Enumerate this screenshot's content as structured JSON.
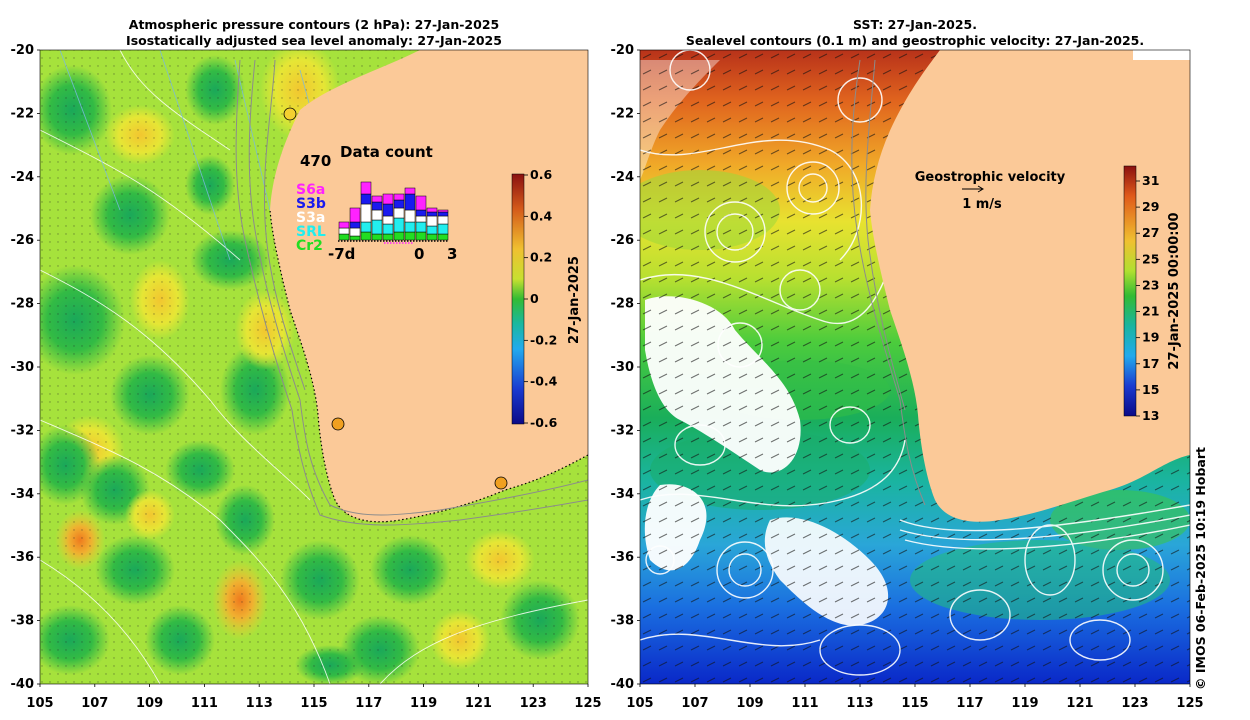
{
  "left_panel": {
    "title_line1": "Atmospheric pressure contours (2 hPa): 27-Jan-2025",
    "title_line2": "Isostatically adjusted sea level anomaly: 27-Jan-2025",
    "colorbar_label": "27-Jan-2025",
    "colorbar_ticks": [
      "0.6",
      "0.4",
      "0.2",
      "0",
      "-0.2",
      "-0.4",
      "-0.6"
    ],
    "inset": {
      "title": "Data count",
      "max_count": "470",
      "x_labels": [
        "-7d",
        "0",
        "3"
      ],
      "legend": [
        {
          "label": "S6a",
          "color": "#ff22ff"
        },
        {
          "label": "S3b",
          "color": "#1a1aee"
        },
        {
          "label": "S3a",
          "color": "#ffffff"
        },
        {
          "label": "SRL",
          "color": "#22eeee"
        },
        {
          "label": "Cr2",
          "color": "#22dd22"
        }
      ]
    }
  },
  "right_panel": {
    "title_line1": "SST: 27-Jan-2025.",
    "title_line2": "Sealevel contours (0.1 m) and geostrophic velocity: 27-Jan-2025.",
    "colorbar_label": "27-Jan-2025 00:00:00",
    "colorbar_ticks": [
      "31",
      "29",
      "27",
      "25",
      "23",
      "21",
      "19",
      "17",
      "15",
      "13"
    ],
    "velocity_key_title": "Geostrophic velocity",
    "velocity_key_scale": "1 m/s"
  },
  "axes": {
    "lat_ticks": [
      "-20",
      "-22",
      "-24",
      "-26",
      "-28",
      "-30",
      "-32",
      "-34",
      "-36",
      "-38",
      "-40"
    ],
    "lon_ticks": [
      "105",
      "107",
      "109",
      "111",
      "113",
      "115",
      "117",
      "119",
      "121",
      "123",
      "125"
    ]
  },
  "credit": "© IMOS 06-Feb-2025 10:19 Hobart",
  "colors": {
    "land": "#fbc998",
    "sla_base": "#a6e23c",
    "sst_warm": "#c8321a",
    "sst_cold": "#0a28c8",
    "contour": "#ffffff",
    "isobath": "#888888"
  }
}
